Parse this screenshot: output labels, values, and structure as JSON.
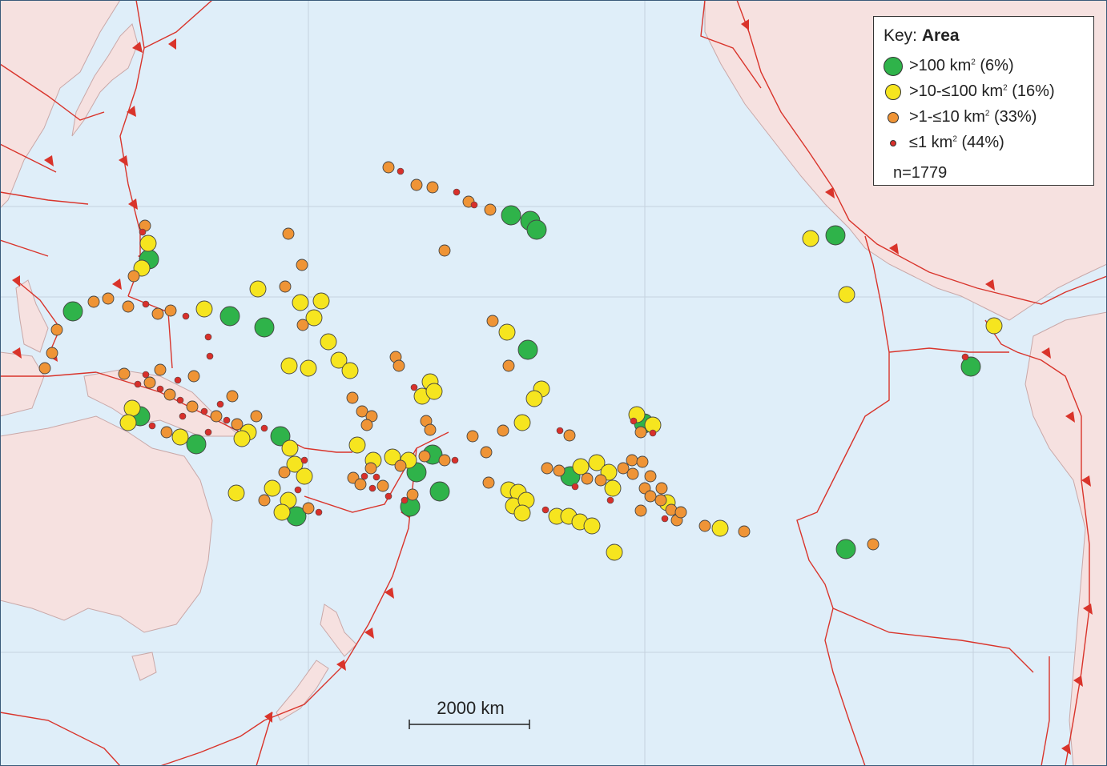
{
  "colors": {
    "ocean": "#dfeef9",
    "land": "#f6e1e0",
    "land_edge": "#c9a8a8",
    "plate_boundary": "#d9342b",
    "class_gt100": "#2fb34a",
    "class_10_100": "#f6e51f",
    "class_1_10": "#ef9436",
    "class_le1": "#d8302b",
    "grid": "#c5d2de"
  },
  "legend": {
    "key_prefix": "Key: ",
    "key_title": "Area",
    "items": [
      {
        "pre": ">100 km",
        "sup": "2",
        "post": " (6%)",
        "color_key": "class_gt100"
      },
      {
        "pre": ">10-≤100 km",
        "sup": "2",
        "post": " (16%)",
        "color_key": "class_10_100"
      },
      {
        "pre": ">1-≤10 km",
        "sup": "2",
        "post": " (33%)",
        "color_key": "class_1_10"
      },
      {
        "pre": "≤1 km",
        "sup": "2",
        "post": " (44%)",
        "color_key": "class_le1"
      }
    ],
    "count": "n=1779"
  },
  "scale_bar": {
    "label": "2000 km"
  }
}
